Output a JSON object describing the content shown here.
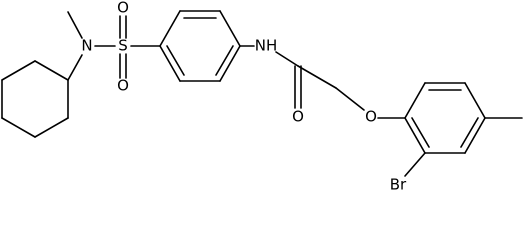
{
  "atoms": [
    {
      "label": "O"
    },
    {
      "label": "O"
    },
    {
      "label": "S"
    },
    {
      "label": "N"
    },
    {
      "label": "NH"
    },
    {
      "label": "O"
    },
    {
      "label": "O"
    },
    {
      "label": "Br"
    }
  ]
}
